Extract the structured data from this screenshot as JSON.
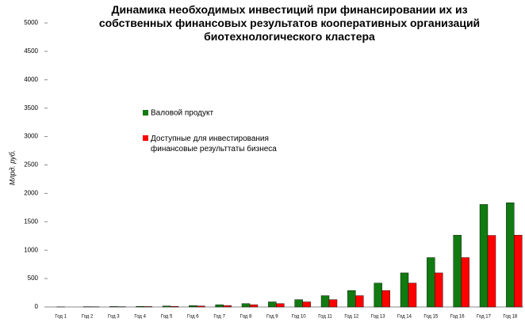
{
  "chart_data": {
    "type": "bar",
    "title": "Динамика необходимых инвестиций при финансировании их из\nсобственных финансовых результатов кооперативных организаций\nбиотехнологического кластера",
    "y_label": "Млрд. руб.",
    "categories": [
      "Год 1",
      "Год 2",
      "Год 3",
      "Год 4",
      "Год 5",
      "Год 6",
      "Год 7",
      "Год 8",
      "Год 9",
      "Год 10",
      "Год 11",
      "Год 12",
      "Год 13",
      "Год 14",
      "Год 15",
      "Год 16",
      "Год 17",
      "Год 18"
    ],
    "series": [
      {
        "name": "Валовой продукт",
        "color": "#117a11",
        "values": [
          2,
          5,
          8,
          12,
          18,
          25,
          40,
          60,
          90,
          130,
          200,
          290,
          420,
          600,
          870,
          1265,
          1805,
          1835
        ]
      },
      {
        "name": "Доступные для инвестирования\nфинансовые результтаты бизнеса",
        "color": "#ff0000",
        "values": [
          0,
          3,
          5,
          8,
          12,
          18,
          25,
          40,
          60,
          90,
          130,
          200,
          290,
          420,
          600,
          870,
          1260,
          1265
        ]
      }
    ],
    "ylim": [
      0,
      5000
    ],
    "yticks": [
      0,
      500,
      1000,
      1500,
      2000,
      2500,
      3000,
      3500,
      4000,
      4500,
      5000
    ]
  }
}
